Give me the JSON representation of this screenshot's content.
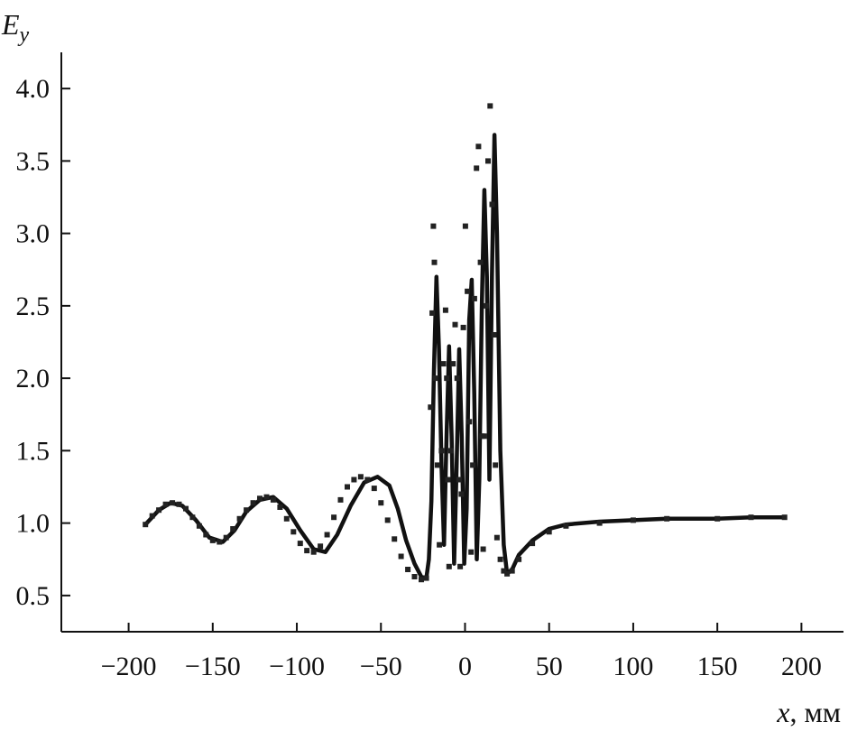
{
  "chart_data": {
    "type": "line",
    "xlabel_var": "x",
    "xlabel_unit": ", мм",
    "ylabel_main": "E",
    "ylabel_sub": "y",
    "xlim": [
      -240,
      225
    ],
    "ylim": [
      0.25,
      4.25
    ],
    "xticks": [
      -200,
      -150,
      -100,
      -50,
      0,
      50,
      100,
      150,
      200
    ],
    "xtick_labels": [
      "−200",
      "−150",
      "−100",
      "−50",
      "0",
      "50",
      "100",
      "150",
      "200"
    ],
    "yticks": [
      0.5,
      1.0,
      1.5,
      2.0,
      2.5,
      3.0,
      3.5,
      4.0
    ],
    "ytick_labels": [
      "0.5",
      "1.0",
      "1.5",
      "2.0",
      "2.5",
      "3.0",
      "3.5",
      "4.0"
    ],
    "grid": false,
    "series": [
      {
        "style": "solid",
        "x": [
          -190,
          -182,
          -175,
          -168,
          -160,
          -152,
          -144,
          -137,
          -130,
          -122,
          -114,
          -106,
          -98,
          -90,
          -83,
          -76,
          -68,
          -60,
          -52,
          -45,
          -40,
          -35,
          -30,
          -26,
          -23,
          -21.5,
          -20,
          -18.5,
          -17,
          -15.5,
          -14,
          -12.5,
          -11,
          -9.5,
          -8,
          -6.5,
          -5,
          -3.5,
          -2,
          -0.5,
          1,
          2.5,
          4,
          5.5,
          7,
          8.5,
          10,
          11.5,
          13,
          14.5,
          16,
          17.5,
          19,
          21,
          23,
          25,
          28,
          32,
          40,
          50,
          60,
          80,
          100,
          120,
          150,
          170,
          190
        ],
        "y": [
          0.99,
          1.09,
          1.14,
          1.12,
          1.02,
          0.9,
          0.87,
          0.95,
          1.08,
          1.16,
          1.18,
          1.1,
          0.95,
          0.82,
          0.8,
          0.92,
          1.12,
          1.28,
          1.32,
          1.26,
          1.1,
          0.88,
          0.72,
          0.63,
          0.62,
          0.75,
          1.15,
          2.05,
          2.7,
          2.2,
          1.4,
          0.85,
          1.6,
          2.22,
          1.6,
          0.72,
          1.4,
          2.2,
          1.6,
          0.72,
          1.1,
          2.4,
          2.68,
          1.9,
          0.75,
          1.3,
          2.5,
          3.3,
          2.7,
          1.3,
          2.7,
          3.68,
          3.0,
          1.5,
          0.85,
          0.65,
          0.68,
          0.78,
          0.88,
          0.96,
          0.99,
          1.01,
          1.02,
          1.03,
          1.03,
          1.04,
          1.04
        ]
      },
      {
        "style": "dotted",
        "x": [
          -190,
          -186,
          -182,
          -178,
          -174,
          -170,
          -166,
          -162,
          -158,
          -154,
          -150,
          -146,
          -142,
          -138,
          -134,
          -130,
          -126,
          -122,
          -118,
          -114,
          -110,
          -106,
          -102,
          -98,
          -94,
          -90,
          -86,
          -82,
          -78,
          -74,
          -70,
          -66,
          -62,
          -58,
          -54,
          -50,
          -46,
          -42,
          -38,
          -34,
          -30,
          -26,
          -23,
          -20.5,
          -19.5,
          -18.8,
          -18.2,
          -17.6,
          -16.4,
          -15.2,
          -14,
          -12.8,
          -11.6,
          -10.9,
          -10.2,
          -9.5,
          -8.3,
          -7.1,
          -5.9,
          -4.7,
          -3.6,
          -2.9,
          -2.2,
          -1,
          0.2,
          1.4,
          2.6,
          3.6,
          4.6,
          5.6,
          6.8,
          8,
          9.2,
          10.1,
          10.8,
          11.5,
          12.5,
          13.7,
          14.9,
          16.1,
          17.2,
          18.1,
          19,
          21,
          23,
          25,
          28,
          32,
          40,
          50,
          60,
          80,
          100,
          120,
          150,
          170,
          190
        ],
        "y": [
          0.99,
          1.05,
          1.09,
          1.13,
          1.14,
          1.13,
          1.1,
          1.04,
          0.98,
          0.92,
          0.88,
          0.87,
          0.9,
          0.96,
          1.03,
          1.09,
          1.14,
          1.17,
          1.18,
          1.16,
          1.11,
          1.03,
          0.94,
          0.86,
          0.81,
          0.8,
          0.84,
          0.92,
          1.04,
          1.16,
          1.25,
          1.3,
          1.32,
          1.3,
          1.24,
          1.14,
          1.02,
          0.89,
          0.77,
          0.68,
          0.63,
          0.61,
          0.62,
          1.8,
          2.45,
          3.05,
          2.8,
          2.0,
          1.4,
          0.85,
          1.5,
          2.1,
          2.47,
          2.0,
          1.3,
          0.7,
          1.5,
          2.1,
          2.37,
          2.0,
          1.3,
          0.7,
          1.2,
          2.35,
          3.05,
          2.6,
          1.7,
          0.8,
          1.4,
          2.55,
          3.45,
          3.6,
          2.8,
          1.6,
          0.82,
          1.6,
          2.5,
          3.5,
          3.88,
          3.2,
          2.3,
          1.4,
          0.9,
          0.75,
          0.67,
          0.65,
          0.67,
          0.75,
          0.86,
          0.94,
          0.98,
          1.0,
          1.02,
          1.03,
          1.03,
          1.04,
          1.04
        ]
      }
    ]
  }
}
